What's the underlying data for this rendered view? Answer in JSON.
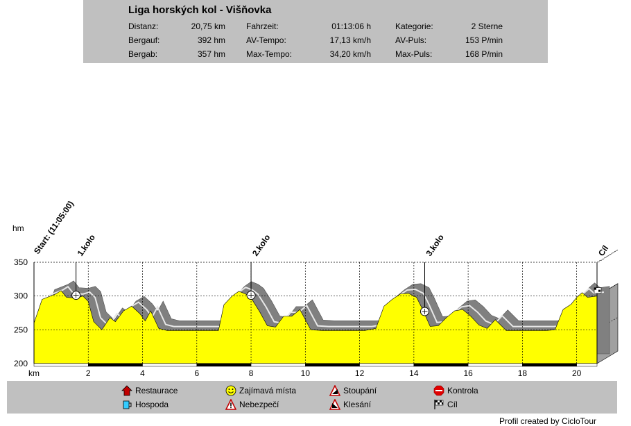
{
  "header": {
    "title": "Liga horských kol - Višňovka",
    "rows": [
      [
        {
          "label": "Distanz:",
          "value": "20,75 km"
        },
        {
          "label": "Fahrzeit:",
          "value": "01:13:06 h"
        },
        {
          "label": "Kategorie:",
          "value": "2 Sterne"
        }
      ],
      [
        {
          "label": "Bergauf:",
          "value": "392 hm"
        },
        {
          "label": "AV-Tempo:",
          "value": "17,13 km/h"
        },
        {
          "label": "AV-Puls:",
          "value": "153 P/min"
        }
      ],
      [
        {
          "label": "Bergab:",
          "value": "357 hm"
        },
        {
          "label": "Max-Tempo:",
          "value": "34,20 km/h"
        },
        {
          "label": "Max-Puls:",
          "value": "168 P/min"
        }
      ]
    ]
  },
  "chart_data": {
    "type": "area",
    "xlabel": "km",
    "ylabel": "hm",
    "xlim": [
      0,
      20.75
    ],
    "ylim": [
      200,
      350
    ],
    "x_ticks": [
      2,
      4,
      6,
      8,
      10,
      12,
      14,
      16,
      18,
      20
    ],
    "y_ticks": [
      200,
      250,
      300,
      350
    ],
    "grid": true,
    "fill_color": "#ffff00",
    "x": [
      0,
      0.3,
      0.8,
      1.0,
      1.2,
      1.55,
      1.8,
      2.0,
      2.2,
      2.5,
      2.8,
      3.0,
      3.3,
      3.6,
      3.9,
      4.1,
      4.3,
      4.6,
      4.9,
      5.2,
      5.6,
      6.0,
      6.4,
      6.8,
      7.0,
      7.3,
      7.55,
      7.8,
      8.0,
      8.3,
      8.6,
      8.9,
      9.2,
      9.5,
      9.8,
      10.2,
      10.6,
      11.0,
      11.4,
      11.8,
      12.2,
      12.6,
      12.9,
      13.2,
      13.5,
      13.8,
      14.1,
      14.3,
      14.6,
      14.9,
      15.2,
      15.5,
      15.8,
      16.1,
      16.4,
      16.7,
      17.0,
      17.4,
      17.8,
      18.2,
      18.6,
      18.9,
      19.2,
      19.5,
      19.8,
      20.0,
      20.2,
      20.4,
      20.75
    ],
    "y": [
      260,
      295,
      303,
      308,
      298,
      297,
      300,
      292,
      262,
      250,
      268,
      262,
      278,
      285,
      274,
      263,
      278,
      252,
      249,
      249,
      249,
      249,
      249,
      249,
      287,
      300,
      307,
      303,
      297,
      278,
      256,
      254,
      270,
      270,
      280,
      250,
      249,
      249,
      249,
      249,
      249,
      252,
      285,
      295,
      303,
      304,
      298,
      282,
      255,
      256,
      268,
      278,
      280,
      270,
      257,
      252,
      265,
      249,
      249,
      249,
      249,
      249,
      250,
      280,
      288,
      298,
      305,
      298,
      300
    ],
    "markers": [
      {
        "km": 0,
        "label": "Start: (11:05:00)"
      },
      {
        "km": 1.55,
        "label": "1.kolo"
      },
      {
        "km": 8.0,
        "label": "2.kolo"
      },
      {
        "km": 14.4,
        "label": "3.kolo"
      },
      {
        "km": 20.75,
        "label": "Cíl"
      }
    ]
  },
  "legend": {
    "items": [
      {
        "label": "Restaurace",
        "icon": "house-icon"
      },
      {
        "label": "Hospoda",
        "icon": "beer-mug-icon"
      },
      {
        "label": "Zajímavá místa",
        "icon": "smiley-icon"
      },
      {
        "label": "Nebezpečí",
        "icon": "warning-icon"
      },
      {
        "label": "Stoupání",
        "icon": "climb-icon"
      },
      {
        "label": "Klesání",
        "icon": "descent-icon"
      },
      {
        "label": "Kontrola",
        "icon": "stop-icon"
      },
      {
        "label": "Cíl",
        "icon": "finish-flag-icon"
      }
    ]
  },
  "footer": {
    "credit": "Profil created by CicloTour"
  }
}
